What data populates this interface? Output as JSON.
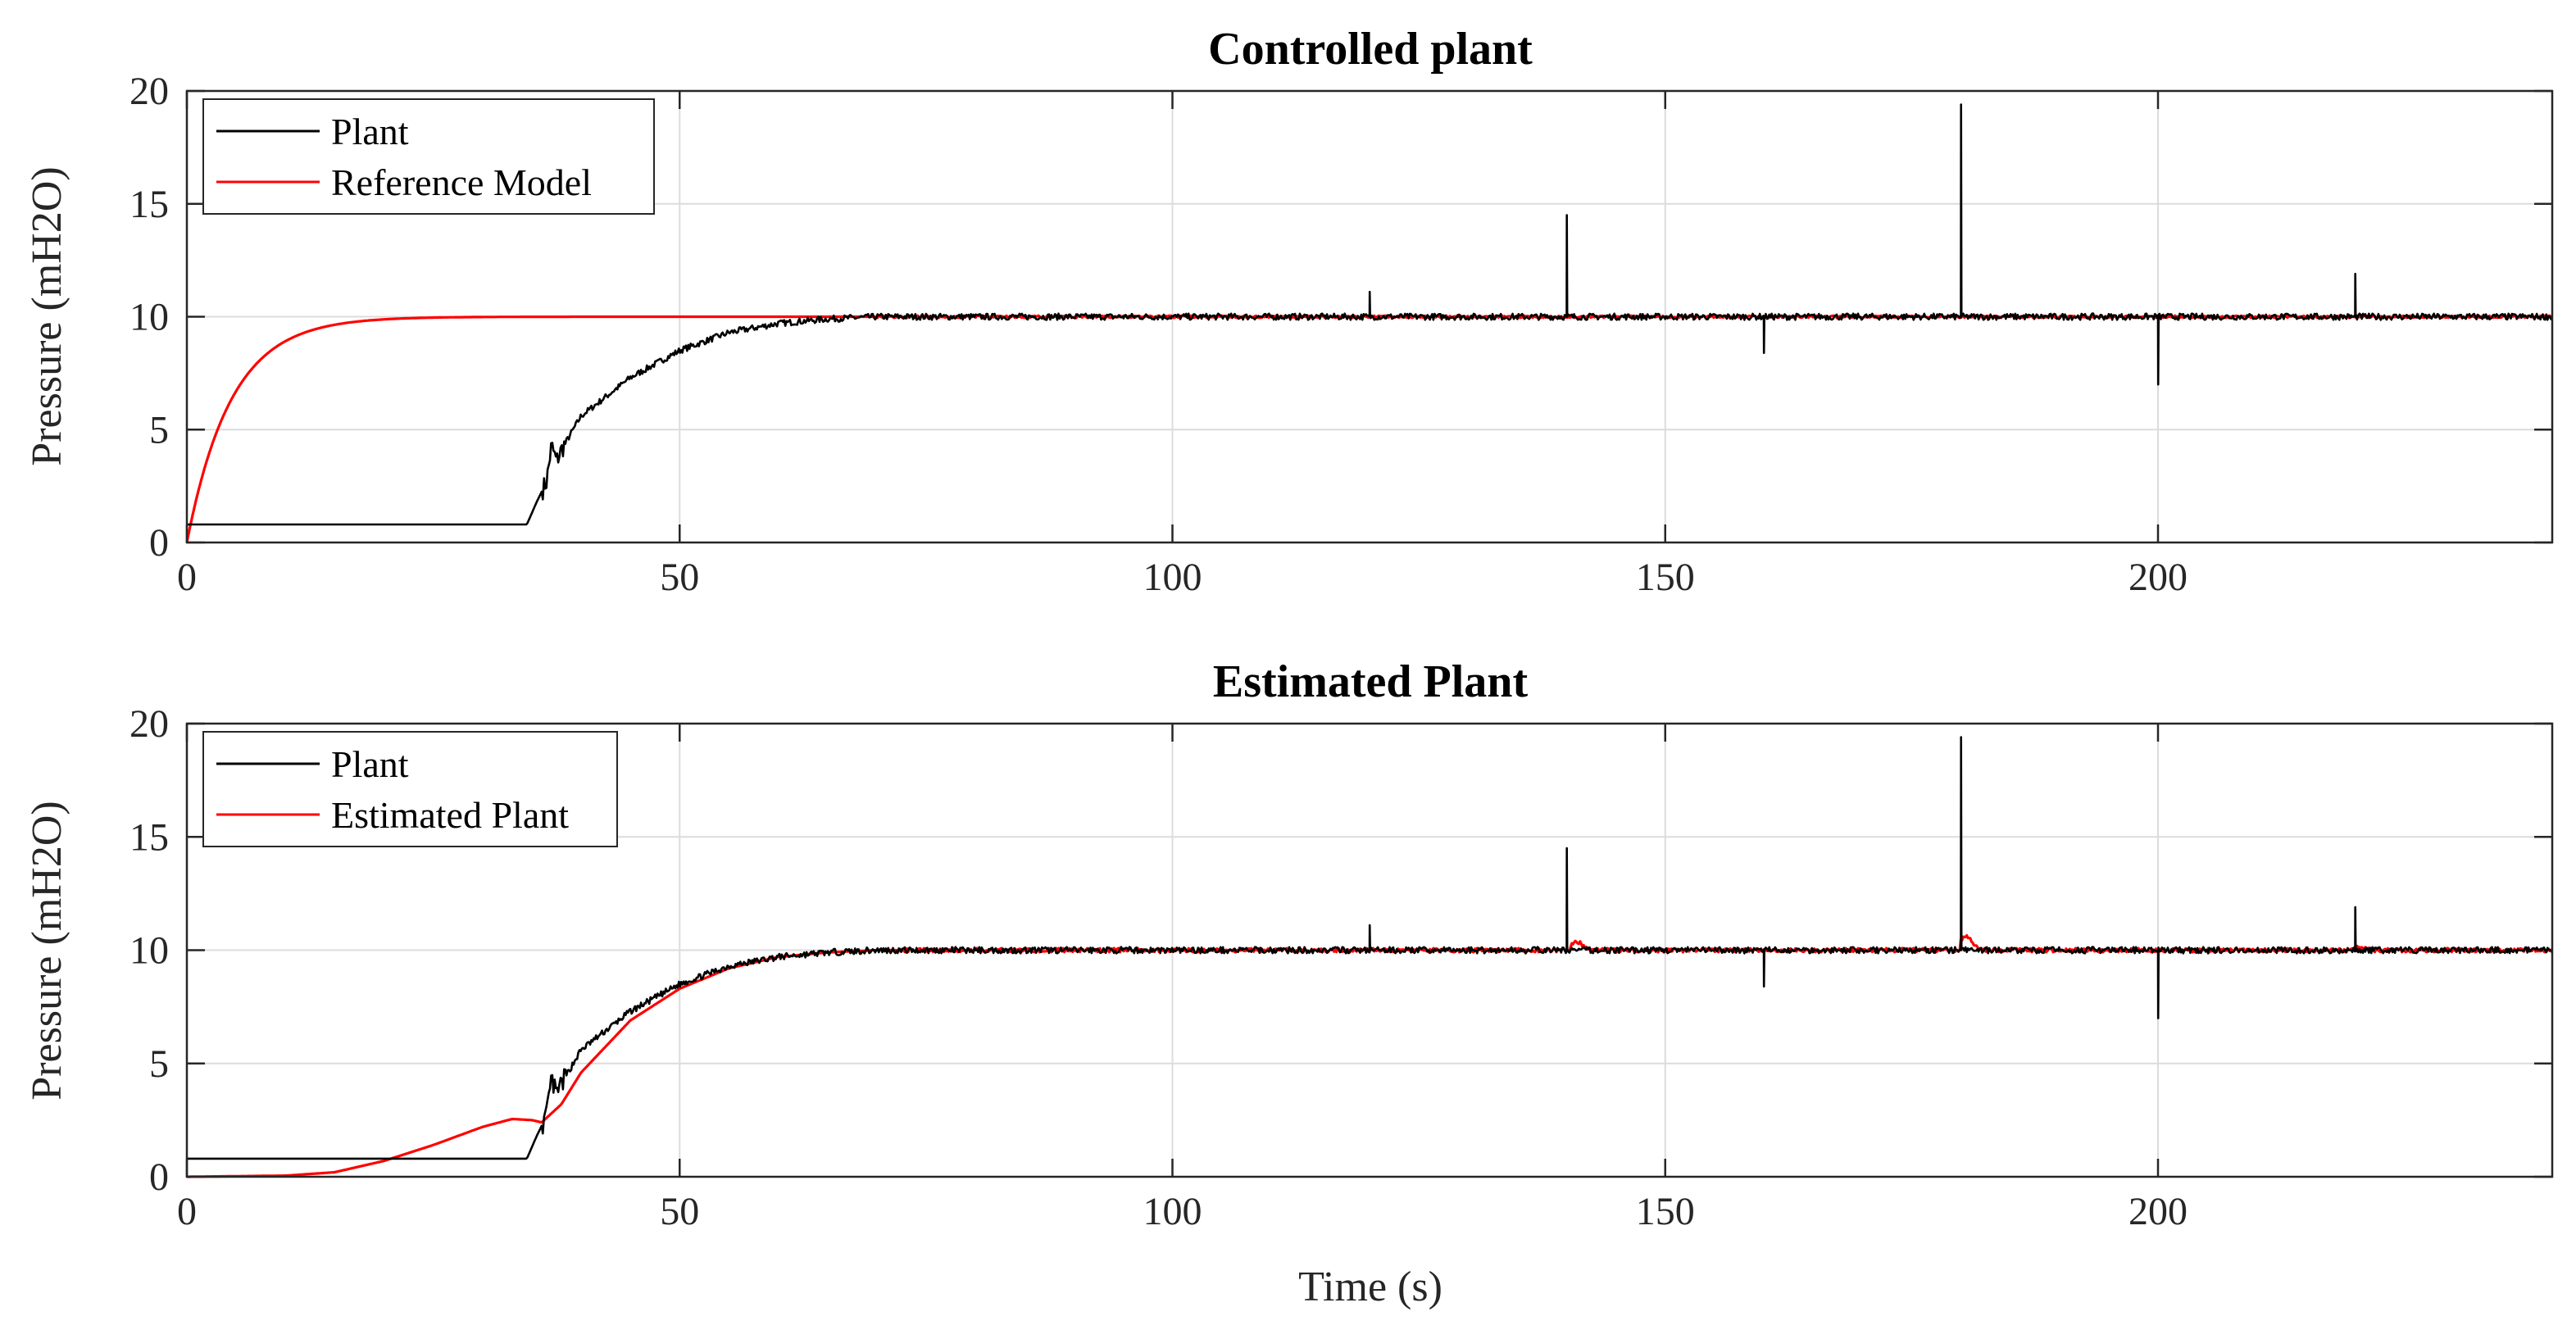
{
  "chart_data": [
    {
      "type": "line",
      "title": "Controlled plant",
      "xlabel": "",
      "ylabel": "Pressure (mH2O)",
      "xlim": [
        0,
        240
      ],
      "ylim": [
        0,
        20
      ],
      "xticks": [
        "0",
        "50",
        "100",
        "150",
        "200"
      ],
      "yticks": [
        "0",
        "5",
        "10",
        "15",
        "20"
      ],
      "grid": true,
      "legend_position": "top-left",
      "series": [
        {
          "name": "Plant",
          "color": "#000000",
          "description_points": "baseline ~0.8 until t=35, rises to 10 by t~70, spikes at 120 (11.1), 140 (14.5), 160 (8.4), 180 (19.4), 200 (7.0), 220 (11.9)",
          "x": [
            0,
            34.5,
            35.5,
            36.5,
            37,
            37.5,
            38,
            40,
            45,
            50,
            55,
            60,
            65,
            70,
            240
          ],
          "y": [
            0.8,
            0.8,
            1.8,
            2.7,
            4.3,
            3.6,
            4.1,
            5.6,
            7.3,
            8.5,
            9.3,
            9.7,
            9.9,
            10,
            10
          ],
          "spikes": [
            [
              120,
              11.1
            ],
            [
              140,
              14.5
            ],
            [
              160,
              8.4
            ],
            [
              180,
              19.4
            ],
            [
              200,
              7.0
            ],
            [
              220,
              11.9
            ]
          ]
        },
        {
          "name": "Reference Model",
          "color": "#ff0000",
          "x": [
            0,
            2,
            5,
            10,
            15,
            20,
            25,
            30,
            40,
            240
          ],
          "y": [
            0,
            3.3,
            6.3,
            8.6,
            9.5,
            9.8,
            9.95,
            10,
            10,
            10
          ],
          "time_constant": 4.5
        }
      ]
    },
    {
      "type": "line",
      "title": "Estimated Plant",
      "xlabel": "Time (s)",
      "ylabel": "Pressure (mH2O)",
      "xlim": [
        0,
        240
      ],
      "ylim": [
        0,
        20
      ],
      "xticks": [
        "0",
        "50",
        "100",
        "150",
        "200"
      ],
      "yticks": [
        "0",
        "5",
        "10",
        "15",
        "20"
      ],
      "grid": true,
      "legend_position": "top-left",
      "series": [
        {
          "name": "Plant",
          "color": "#000000",
          "x": [
            0,
            34.5,
            35.5,
            36.5,
            37,
            37.5,
            38,
            40,
            45,
            50,
            55,
            60,
            65,
            70,
            240
          ],
          "y": [
            0.8,
            0.8,
            1.8,
            2.7,
            4.3,
            3.6,
            4.1,
            5.6,
            7.3,
            8.5,
            9.3,
            9.7,
            9.9,
            10,
            10
          ],
          "spikes": [
            [
              120,
              11.1
            ],
            [
              140,
              14.5
            ],
            [
              160,
              8.4
            ],
            [
              180,
              19.4
            ],
            [
              200,
              7.0
            ],
            [
              220,
              11.9
            ]
          ]
        },
        {
          "name": "Estimated Plant",
          "color": "#ff0000",
          "x": [
            0,
            10,
            15,
            20,
            25,
            30,
            33,
            35,
            36,
            38,
            40,
            45,
            50,
            55,
            60,
            65,
            70,
            240
          ],
          "y": [
            0,
            0.05,
            0.2,
            0.7,
            1.4,
            2.2,
            2.55,
            2.5,
            2.4,
            3.2,
            4.6,
            6.9,
            8.3,
            9.2,
            9.7,
            9.9,
            10,
            10
          ],
          "bumps": [
            [
              141,
              10.35
            ],
            [
              180.5,
              10.6
            ],
            [
              220.5,
              10.15
            ]
          ]
        }
      ]
    }
  ]
}
